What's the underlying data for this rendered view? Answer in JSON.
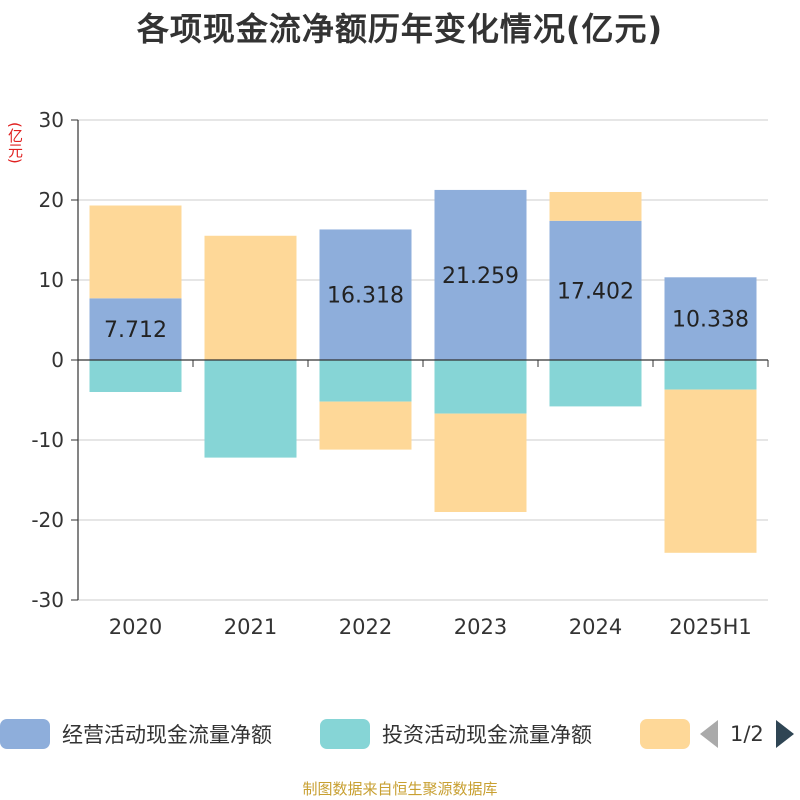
{
  "chart_data": {
    "type": "bar",
    "stacked": true,
    "title": "各项现金流净额历年变化情况(亿元)",
    "ylabel": "(亿元)",
    "ylim": [
      -30,
      30
    ],
    "yticks": [
      30,
      20,
      10,
      0,
      -10,
      -20,
      -30
    ],
    "categories": [
      "2020",
      "2021",
      "2022",
      "2023",
      "2024",
      "2025H1"
    ],
    "series": [
      {
        "name": "经营活动现金流量净额",
        "color": "#8eaedb",
        "values": [
          7.712,
          0.03,
          16.318,
          21.259,
          17.402,
          10.338
        ],
        "labels": [
          "7.712",
          "",
          "16.318",
          "21.259",
          "17.402",
          "10.338"
        ]
      },
      {
        "name": "投资活动现金流量净额",
        "color": "#86d5d6",
        "values": [
          -4.0,
          -12.2,
          -5.2,
          -6.7,
          -5.8,
          -3.7
        ]
      },
      {
        "name": "",
        "color": "#fed898",
        "values": [
          11.6,
          15.5,
          -6.0,
          -12.3,
          3.6,
          -20.4
        ]
      }
    ],
    "grid": true,
    "legend_position": "bottom"
  },
  "legend": {
    "page": "1/2"
  },
  "source": "制图数据来自恒生聚源数据库"
}
